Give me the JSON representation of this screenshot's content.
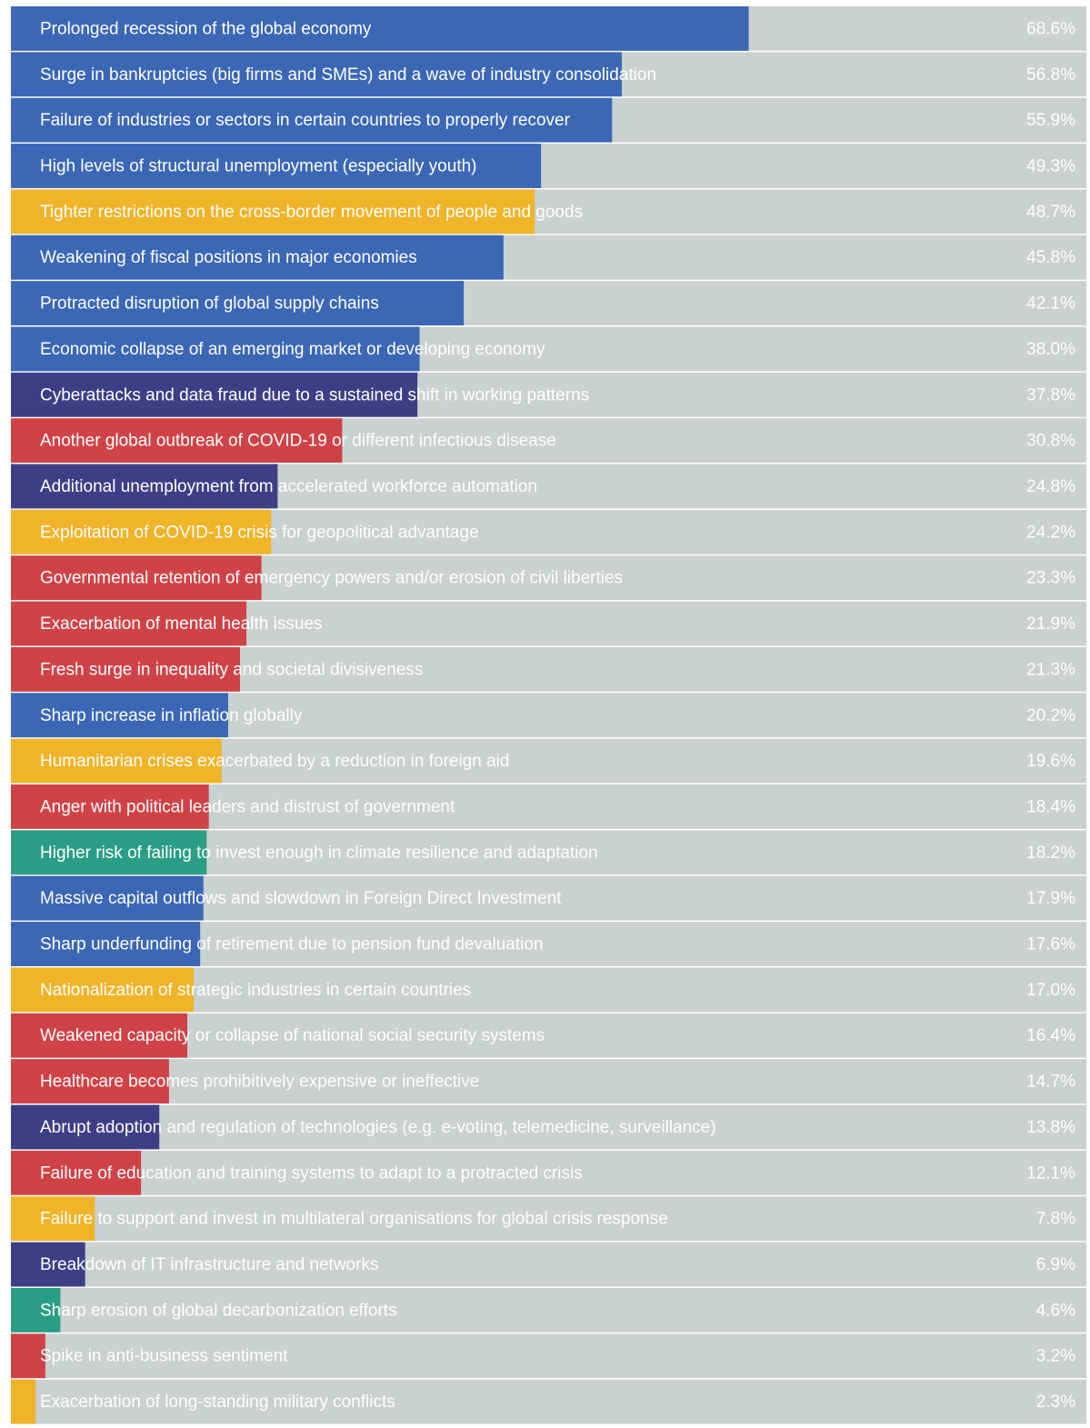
{
  "chart_data": {
    "type": "bar",
    "orientation": "horizontal",
    "categories": [
      "Prolonged recession of the global economy",
      "Surge in bankruptcies (big firms and SMEs) and a wave of industry consolidation",
      "Failure of industries or sectors in certain countries to properly recover",
      "High levels of structural unemployment (especially youth)",
      "Tighter restrictions on the cross-border movement of people and goods",
      "Weakening of fiscal positions in major economies",
      "Protracted disruption of global supply chains",
      "Economic collapse of an emerging market or developing economy",
      "Cyberattacks and data fraud due to a sustained shift in working patterns",
      "Another global outbreak of COVID-19 or different infectious disease",
      "Additional unemployment from accelerated workforce automation",
      "Exploitation of COVID-19 crisis for geopolitical advantage",
      "Governmental retention of emergency powers and/or erosion of civil liberties",
      "Exacerbation of mental health issues",
      "Fresh surge in inequality and societal divisiveness",
      "Sharp increase in inflation globally",
      "Humanitarian crises exacerbated by a reduction in foreign aid",
      "Anger with political leaders and distrust of government",
      "Higher risk of failing to invest enough in climate resilience and adaptation",
      "Massive capital outflows and slowdown in Foreign Direct Investment",
      "Sharp underfunding of retirement due to pension fund devaluation",
      "Nationalization of strategic industries in certain countries",
      "Weakened capacity or collapse of national social security systems",
      "Healthcare becomes prohibitively expensive or ineffective",
      "Abrupt adoption and regulation of technologies (e.g. e-voting, telemedicine, surveillance)",
      "Failure of education and training systems to adapt to a protracted crisis",
      "Failure to support and invest in multilateral organisations for global crisis response",
      "Breakdown of IT infrastructure and networks",
      "Sharp erosion of global decarbonization efforts",
      "Spike in anti-business sentiment",
      "Exacerbation of long-standing military conflicts"
    ],
    "values": [
      68.6,
      56.8,
      55.9,
      49.3,
      48.7,
      45.8,
      42.1,
      38.0,
      37.8,
      30.8,
      24.8,
      24.2,
      23.3,
      21.9,
      21.3,
      20.2,
      19.6,
      18.4,
      18.2,
      17.9,
      17.6,
      17.0,
      16.4,
      14.7,
      13.8,
      12.1,
      7.8,
      6.9,
      4.6,
      3.2,
      2.3
    ],
    "value_labels": [
      "68.6%",
      "56.8%",
      "55.9%",
      "49.3%",
      "48.7%",
      "45.8%",
      "42.1%",
      "38.0%",
      "37.8%",
      "30.8%",
      "24.8%",
      "24.2%",
      "23.3%",
      "21.9%",
      "21.3%",
      "20.2%",
      "19.6%",
      "18.4%",
      "18.2%",
      "17.9%",
      "17.6%",
      "17.0%",
      "16.4%",
      "14.7%",
      "13.8%",
      "12.1%",
      "7.8%",
      "6.9%",
      "4.6%",
      "3.2%",
      "2.3%"
    ],
    "colors": [
      "#3b67b5",
      "#3b67b5",
      "#3b67b5",
      "#3b67b5",
      "#f0b429",
      "#3b67b5",
      "#3b67b5",
      "#3b67b5",
      "#3d3f86",
      "#cf4347",
      "#3d3f86",
      "#f0b429",
      "#cf4347",
      "#cf4347",
      "#cf4347",
      "#3b67b5",
      "#f0b429",
      "#cf4347",
      "#2a9e85",
      "#3b67b5",
      "#3b67b5",
      "#f0b429",
      "#cf4347",
      "#cf4347",
      "#3d3f86",
      "#cf4347",
      "#f0b429",
      "#3d3f86",
      "#2a9e85",
      "#cf4347",
      "#f0b429"
    ],
    "xlim": [
      0,
      100
    ]
  }
}
